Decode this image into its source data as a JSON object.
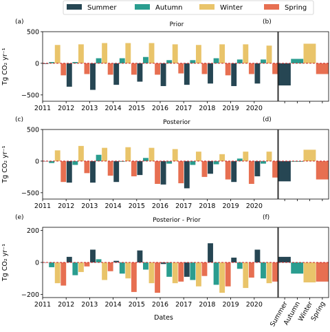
{
  "legend": {
    "entries": [
      {
        "label": "Summer",
        "color": "#264653"
      },
      {
        "label": "Autumn",
        "color": "#2a9d8f"
      },
      {
        "label": "Winter",
        "color": "#e9c46a"
      },
      {
        "label": "Spring",
        "color": "#e76f51"
      }
    ]
  },
  "ylabel": "Tg CO₂ yr⁻¹",
  "xlabel": "Dates",
  "season_ticks": [
    "Summer",
    "Autumn",
    "Winter",
    "Spring"
  ],
  "chart_data": [
    {
      "type": "bar",
      "panel": "(a)",
      "title": "Prior",
      "years": [
        "2011",
        "2012",
        "2013",
        "2014",
        "2015",
        "2016",
        "2017",
        "2018",
        "2019",
        "2020"
      ],
      "ylim": [
        -600,
        500
      ],
      "yticks": [
        -500,
        0,
        500
      ],
      "series": [
        {
          "name": "Summer",
          "values": [
            -10,
            -370,
            -420,
            -340,
            -290,
            -360,
            -340,
            -320,
            -360,
            -320
          ]
        },
        {
          "name": "Autumn",
          "values": [
            20,
            20,
            80,
            80,
            100,
            50,
            50,
            80,
            60,
            60
          ]
        },
        {
          "name": "Winter",
          "values": [
            290,
            300,
            320,
            320,
            320,
            300,
            290,
            300,
            300,
            280
          ]
        },
        {
          "name": "Spring",
          "values": [
            -190,
            -170,
            -180,
            -180,
            -180,
            -160,
            -170,
            -190,
            -170,
            -170
          ]
        }
      ]
    },
    {
      "type": "bar",
      "panel": "(b)",
      "ylim": [
        -600,
        500
      ],
      "categories": [
        "Summer",
        "Autumn",
        "Winter",
        "Spring"
      ],
      "values": [
        -350,
        70,
        310,
        -170
      ]
    },
    {
      "type": "bar",
      "panel": "(c)",
      "title": "Posterior",
      "years": [
        "2011",
        "2012",
        "2013",
        "2014",
        "2015",
        "2016",
        "2017",
        "2018",
        "2019",
        "2020"
      ],
      "ylim": [
        -600,
        500
      ],
      "yticks": [
        -500,
        0,
        500
      ],
      "series": [
        {
          "name": "Summer",
          "values": [
            0,
            -340,
            -340,
            -330,
            -220,
            -370,
            -430,
            -200,
            -330,
            -240
          ]
        },
        {
          "name": "Autumn",
          "values": [
            -30,
            -60,
            100,
            -10,
            50,
            -40,
            -60,
            -50,
            40,
            -40
          ]
        },
        {
          "name": "Winter",
          "values": [
            170,
            240,
            210,
            220,
            210,
            190,
            150,
            110,
            150,
            150
          ]
        },
        {
          "name": "Spring",
          "values": [
            -330,
            -190,
            -230,
            -240,
            -360,
            -350,
            -250,
            -290,
            -360,
            -260
          ]
        }
      ]
    },
    {
      "type": "bar",
      "panel": "(d)",
      "ylim": [
        -600,
        500
      ],
      "categories": [
        "Summer",
        "Autumn",
        "Winter",
        "Spring"
      ],
      "values": [
        -320,
        -10,
        180,
        -290
      ]
    },
    {
      "type": "bar",
      "panel": "(e)",
      "title": "Posterior - Prior",
      "years": [
        "2011",
        "2012",
        "2013",
        "2014",
        "2015",
        "2016",
        "2017",
        "2018",
        "2019",
        "2020"
      ],
      "ylim": [
        -220,
        220
      ],
      "yticks": [
        -200,
        0,
        200
      ],
      "series": [
        {
          "name": "Summer",
          "values": [
            0,
            35,
            80,
            10,
            75,
            -10,
            -90,
            120,
            30,
            80
          ]
        },
        {
          "name": "Autumn",
          "values": [
            -30,
            -80,
            20,
            -70,
            -45,
            -90,
            -110,
            -140,
            -40,
            -100
          ]
        },
        {
          "name": "Winter",
          "values": [
            -130,
            -60,
            -110,
            -100,
            -130,
            -130,
            -150,
            -190,
            -160,
            -130
          ]
        },
        {
          "name": "Spring",
          "values": [
            -145,
            -25,
            -55,
            -185,
            -190,
            -120,
            -85,
            -150,
            -95,
            -120
          ]
        }
      ]
    },
    {
      "type": "bar",
      "panel": "(f)",
      "ylim": [
        -220,
        220
      ],
      "categories": [
        "Summer",
        "Autumn",
        "Winter",
        "Spring"
      ],
      "values": [
        35,
        -70,
        -125,
        -120
      ]
    }
  ]
}
